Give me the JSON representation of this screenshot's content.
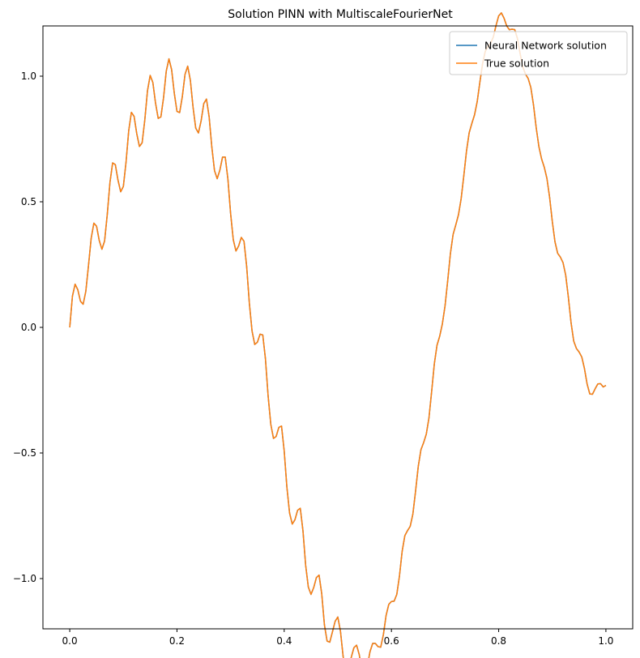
{
  "chart_data": {
    "type": "line",
    "title": "Solution PINN with MultiscaleFourierNet",
    "xlabel": "",
    "ylabel": "",
    "xlim": [
      -0.05,
      1.05
    ],
    "ylim": [
      -1.2,
      1.2
    ],
    "x_ticks": [
      {
        "value": 0.0,
        "label": "0.0"
      },
      {
        "value": 0.2,
        "label": "0.2"
      },
      {
        "value": 0.4,
        "label": "0.4"
      },
      {
        "value": 0.6,
        "label": "0.6"
      },
      {
        "value": 0.8,
        "label": "0.8"
      },
      {
        "value": 1.0,
        "label": "1.0"
      }
    ],
    "y_ticks": [
      {
        "value": 1.0,
        "label": "1.0"
      },
      {
        "value": 0.5,
        "label": "0.5"
      },
      {
        "value": 0.0,
        "label": "0.0"
      },
      {
        "value": -0.5,
        "label": "−0.5"
      },
      {
        "value": -1.0,
        "label": "−1.0"
      }
    ],
    "grid": false,
    "legend_position": "top-right",
    "series": [
      {
        "name": "Neural Network solution",
        "color": "#1f77b4",
        "x": [
          0.0,
          0.005,
          0.01,
          0.015,
          0.02,
          0.025,
          0.03,
          0.035,
          0.04,
          0.045,
          0.05,
          0.055,
          0.06,
          0.065,
          0.07,
          0.075,
          0.08,
          0.085,
          0.09,
          0.095,
          0.1,
          0.105,
          0.11,
          0.115,
          0.12,
          0.125,
          0.13,
          0.135,
          0.14,
          0.145,
          0.15,
          0.155,
          0.16,
          0.165,
          0.17,
          0.175,
          0.18,
          0.185,
          0.19,
          0.195,
          0.2,
          0.205,
          0.21,
          0.215,
          0.22,
          0.225,
          0.23,
          0.235,
          0.24,
          0.245,
          0.25,
          0.255,
          0.26,
          0.265,
          0.27,
          0.275,
          0.28,
          0.285,
          0.29,
          0.295,
          0.3,
          0.305,
          0.31,
          0.315,
          0.32,
          0.325,
          0.33,
          0.335,
          0.34,
          0.345,
          0.35,
          0.355,
          0.36,
          0.365,
          0.37,
          0.375,
          0.38,
          0.385,
          0.39,
          0.395,
          0.4,
          0.405,
          0.41,
          0.415,
          0.42,
          0.425,
          0.43,
          0.435,
          0.44,
          0.445,
          0.45,
          0.455,
          0.46,
          0.465,
          0.47,
          0.475,
          0.48,
          0.485,
          0.49,
          0.495,
          0.5,
          0.505,
          0.51,
          0.515,
          0.52,
          0.525,
          0.53,
          0.535,
          0.54,
          0.545,
          0.55,
          0.555,
          0.56,
          0.565,
          0.57,
          0.575,
          0.58,
          0.585,
          0.59,
          0.595,
          0.6,
          0.605,
          0.61,
          0.615,
          0.62,
          0.625,
          0.63,
          0.635,
          0.64,
          0.645,
          0.65,
          0.655,
          0.66,
          0.665,
          0.67,
          0.675,
          0.68,
          0.685,
          0.69,
          0.695,
          0.7,
          0.705,
          0.71,
          0.715,
          0.72,
          0.725,
          0.73,
          0.735,
          0.74,
          0.745,
          0.75,
          0.755,
          0.76,
          0.765,
          0.77,
          0.775,
          0.78,
          0.785,
          0.79,
          0.795,
          0.8,
          0.805,
          0.81,
          0.815,
          0.82,
          0.825,
          0.83,
          0.835,
          0.84,
          0.845,
          0.85,
          0.855,
          0.86,
          0.865,
          0.87,
          0.875,
          0.88,
          0.885,
          0.89,
          0.895,
          0.9,
          0.905,
          0.91,
          0.915,
          0.92,
          0.925,
          0.93,
          0.935,
          0.94,
          0.945,
          0.95,
          0.955,
          0.96,
          0.965,
          0.97,
          0.975,
          0.98,
          0.985,
          0.99,
          0.995,
          1.0
        ],
        "y": [
          0.0,
          0.124,
          0.172,
          0.15,
          0.104,
          0.092,
          0.144,
          0.247,
          0.355,
          0.415,
          0.403,
          0.346,
          0.311,
          0.344,
          0.45,
          0.577,
          0.655,
          0.648,
          0.586,
          0.54,
          0.561,
          0.658,
          0.783,
          0.856,
          0.84,
          0.771,
          0.72,
          0.735,
          0.826,
          0.942,
          1.003,
          0.975,
          0.893,
          0.832,
          0.838,
          0.915,
          1.02,
          1.069,
          1.026,
          0.932,
          0.86,
          0.855,
          0.919,
          1.007,
          1.04,
          0.983,
          0.876,
          0.793,
          0.774,
          0.822,
          0.891,
          0.909,
          0.838,
          0.718,
          0.624,
          0.592,
          0.626,
          0.678,
          0.678,
          0.59,
          0.454,
          0.349,
          0.304,
          0.324,
          0.358,
          0.343,
          0.242,
          0.096,
          -0.014,
          -0.068,
          -0.059,
          -0.027,
          -0.03,
          -0.125,
          -0.273,
          -0.386,
          -0.442,
          -0.434,
          -0.398,
          -0.393,
          -0.492,
          -0.636,
          -0.739,
          -0.783,
          -0.766,
          -0.728,
          -0.72,
          -0.81,
          -0.947,
          -1.034,
          -1.063,
          -1.036,
          -0.996,
          -0.986,
          -1.061,
          -1.184,
          -1.249,
          -1.253,
          -1.212,
          -1.17,
          -1.153,
          -1.211,
          -1.312,
          -1.365,
          -1.357,
          -1.314,
          -1.275,
          -1.265,
          -1.303,
          -1.37,
          -1.386,
          -1.349,
          -1.291,
          -1.258,
          -1.258,
          -1.271,
          -1.273,
          -1.223,
          -1.147,
          -1.103,
          -1.091,
          -1.09,
          -1.063,
          -0.989,
          -0.891,
          -0.829,
          -0.809,
          -0.792,
          -0.743,
          -0.652,
          -0.554,
          -0.487,
          -0.459,
          -0.425,
          -0.36,
          -0.255,
          -0.145,
          -0.071,
          -0.035,
          0.014,
          0.086,
          0.187,
          0.294,
          0.37,
          0.408,
          0.448,
          0.512,
          0.604,
          0.702,
          0.775,
          0.812,
          0.846,
          0.899,
          0.977,
          1.05,
          1.099,
          1.118,
          1.131,
          1.156,
          1.201,
          1.24,
          1.252,
          1.231,
          1.2,
          1.185,
          1.187,
          1.185,
          1.15,
          1.09,
          1.037,
          1.008,
          0.991,
          0.955,
          0.885,
          0.795,
          0.72,
          0.671,
          0.638,
          0.593,
          0.518,
          0.422,
          0.341,
          0.295,
          0.28,
          0.258,
          0.208,
          0.12,
          0.019,
          -0.055,
          -0.084,
          -0.098,
          -0.118,
          -0.164,
          -0.226,
          -0.265,
          -0.266,
          -0.244,
          -0.225,
          -0.224,
          -0.237,
          -0.231
        ]
      },
      {
        "name": "True solution",
        "color": "#ff7f0e",
        "x": [
          0.0,
          0.005,
          0.01,
          0.015,
          0.02,
          0.025,
          0.03,
          0.035,
          0.04,
          0.045,
          0.05,
          0.055,
          0.06,
          0.065,
          0.07,
          0.075,
          0.08,
          0.085,
          0.09,
          0.095,
          0.1,
          0.105,
          0.11,
          0.115,
          0.12,
          0.125,
          0.13,
          0.135,
          0.14,
          0.145,
          0.15,
          0.155,
          0.16,
          0.165,
          0.17,
          0.175,
          0.18,
          0.185,
          0.19,
          0.195,
          0.2,
          0.205,
          0.21,
          0.215,
          0.22,
          0.225,
          0.23,
          0.235,
          0.24,
          0.245,
          0.25,
          0.255,
          0.26,
          0.265,
          0.27,
          0.275,
          0.28,
          0.285,
          0.29,
          0.295,
          0.3,
          0.305,
          0.31,
          0.315,
          0.32,
          0.325,
          0.33,
          0.335,
          0.34,
          0.345,
          0.35,
          0.355,
          0.36,
          0.365,
          0.37,
          0.375,
          0.38,
          0.385,
          0.39,
          0.395,
          0.4,
          0.405,
          0.41,
          0.415,
          0.42,
          0.425,
          0.43,
          0.435,
          0.44,
          0.445,
          0.45,
          0.455,
          0.46,
          0.465,
          0.47,
          0.475,
          0.48,
          0.485,
          0.49,
          0.495,
          0.5,
          0.505,
          0.51,
          0.515,
          0.52,
          0.525,
          0.53,
          0.535,
          0.54,
          0.545,
          0.55,
          0.555,
          0.56,
          0.565,
          0.57,
          0.575,
          0.58,
          0.585,
          0.59,
          0.595,
          0.6,
          0.605,
          0.61,
          0.615,
          0.62,
          0.625,
          0.63,
          0.635,
          0.64,
          0.645,
          0.65,
          0.655,
          0.66,
          0.665,
          0.67,
          0.675,
          0.68,
          0.685,
          0.69,
          0.695,
          0.7,
          0.705,
          0.71,
          0.715,
          0.72,
          0.725,
          0.73,
          0.735,
          0.74,
          0.745,
          0.75,
          0.755,
          0.76,
          0.765,
          0.77,
          0.775,
          0.78,
          0.785,
          0.79,
          0.795,
          0.8,
          0.805,
          0.81,
          0.815,
          0.82,
          0.825,
          0.83,
          0.835,
          0.84,
          0.845,
          0.85,
          0.855,
          0.86,
          0.865,
          0.87,
          0.875,
          0.88,
          0.885,
          0.89,
          0.895,
          0.9,
          0.905,
          0.91,
          0.915,
          0.92,
          0.925,
          0.93,
          0.935,
          0.94,
          0.945,
          0.95,
          0.955,
          0.96,
          0.965,
          0.97,
          0.975,
          0.98,
          0.985,
          0.99,
          0.995,
          1.0
        ],
        "y": [
          0.0,
          0.124,
          0.172,
          0.15,
          0.104,
          0.092,
          0.144,
          0.247,
          0.355,
          0.415,
          0.403,
          0.346,
          0.311,
          0.344,
          0.45,
          0.577,
          0.655,
          0.648,
          0.586,
          0.54,
          0.561,
          0.658,
          0.783,
          0.856,
          0.84,
          0.771,
          0.72,
          0.735,
          0.826,
          0.942,
          1.003,
          0.975,
          0.893,
          0.832,
          0.838,
          0.915,
          1.02,
          1.069,
          1.026,
          0.932,
          0.86,
          0.855,
          0.919,
          1.007,
          1.04,
          0.983,
          0.876,
          0.793,
          0.774,
          0.822,
          0.891,
          0.909,
          0.838,
          0.718,
          0.624,
          0.592,
          0.626,
          0.678,
          0.678,
          0.59,
          0.454,
          0.349,
          0.304,
          0.324,
          0.358,
          0.343,
          0.242,
          0.096,
          -0.014,
          -0.068,
          -0.059,
          -0.027,
          -0.03,
          -0.125,
          -0.273,
          -0.386,
          -0.442,
          -0.434,
          -0.398,
          -0.393,
          -0.492,
          -0.636,
          -0.739,
          -0.783,
          -0.766,
          -0.728,
          -0.72,
          -0.81,
          -0.947,
          -1.034,
          -1.063,
          -1.036,
          -0.996,
          -0.986,
          -1.061,
          -1.184,
          -1.249,
          -1.253,
          -1.212,
          -1.17,
          -1.153,
          -1.211,
          -1.312,
          -1.365,
          -1.357,
          -1.314,
          -1.275,
          -1.265,
          -1.303,
          -1.37,
          -1.386,
          -1.349,
          -1.291,
          -1.258,
          -1.258,
          -1.271,
          -1.273,
          -1.223,
          -1.147,
          -1.103,
          -1.091,
          -1.09,
          -1.063,
          -0.989,
          -0.891,
          -0.829,
          -0.809,
          -0.792,
          -0.743,
          -0.652,
          -0.554,
          -0.487,
          -0.459,
          -0.425,
          -0.36,
          -0.255,
          -0.145,
          -0.071,
          -0.035,
          0.014,
          0.086,
          0.187,
          0.294,
          0.37,
          0.408,
          0.448,
          0.512,
          0.604,
          0.702,
          0.775,
          0.812,
          0.846,
          0.899,
          0.977,
          1.05,
          1.099,
          1.118,
          1.131,
          1.156,
          1.201,
          1.24,
          1.252,
          1.231,
          1.2,
          1.185,
          1.187,
          1.185,
          1.15,
          1.09,
          1.037,
          1.008,
          0.991,
          0.955,
          0.885,
          0.795,
          0.72,
          0.671,
          0.638,
          0.593,
          0.518,
          0.422,
          0.341,
          0.295,
          0.28,
          0.258,
          0.208,
          0.12,
          0.019,
          -0.055,
          -0.084,
          -0.098,
          -0.118,
          -0.164,
          -0.226,
          -0.265,
          -0.266,
          -0.244,
          -0.225,
          -0.224,
          -0.237,
          -0.231
        ]
      }
    ]
  }
}
